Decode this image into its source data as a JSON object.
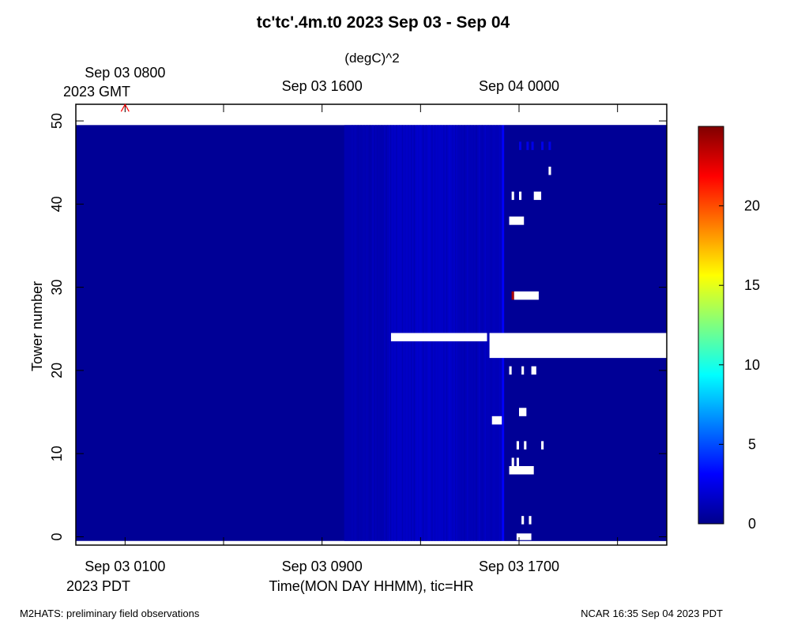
{
  "chart_data": {
    "type": "heatmap",
    "title": "tc'tc'.4m.t0 2023 Sep 03 - Sep 04",
    "colorbar_label": "(degC)^2",
    "xlabel": "Time(MON DAY HHMM), tic=HR",
    "ylabel": "Tower number",
    "bottom_axis": {
      "timezone_label": "2023 PDT",
      "labels": [
        {
          "t": 0,
          "label": "Sep 03 0100"
        },
        {
          "t": 8,
          "label": "Sep 03 0900"
        },
        {
          "t": 16,
          "label": "Sep 03 1700"
        }
      ],
      "major_ticks": [
        0,
        4,
        8,
        12,
        16,
        20
      ]
    },
    "top_axis": {
      "timezone_label": "2023 GMT",
      "labels": [
        {
          "t": 0,
          "label": "Sep 03 0800"
        },
        {
          "t": 8,
          "label": "Sep 03 1600"
        },
        {
          "t": 16,
          "label": "Sep 04 0000"
        }
      ]
    },
    "xlim_hours": [
      -2,
      22
    ],
    "ylim": [
      -1,
      52
    ],
    "yticks": [
      0,
      10,
      20,
      30,
      40,
      50
    ],
    "colorbar": {
      "range": [
        0,
        25
      ],
      "ticks": [
        0,
        5,
        10,
        15,
        20
      ],
      "colormap": [
        "#00008b",
        "#0000ff",
        "#007fff",
        "#00ffff",
        "#7fff7f",
        "#ffff00",
        "#ff7f00",
        "#ff0000",
        "#800000"
      ]
    },
    "field": {
      "towers": [
        0,
        49
      ],
      "background_value": 0.3,
      "bands": [
        {
          "t0": 8.9,
          "t1": 10.7,
          "value": 1.0
        },
        {
          "t0": 10.7,
          "t1": 13.5,
          "value": 1.6
        },
        {
          "t0": 13.5,
          "t1": 15.3,
          "value": 1.2
        },
        {
          "t0": 15.3,
          "t1": 15.4,
          "value": 3.0
        },
        {
          "t0": 15.4,
          "t1": 22,
          "value": 0.3
        }
      ],
      "high_values": [
        {
          "tower": 29,
          "t0": 15.7,
          "t1": 15.8,
          "value": 24
        }
      ],
      "missing": [
        {
          "t0": 10.8,
          "t1": 14.7,
          "y0": 23.5,
          "y1": 24.5
        },
        {
          "t0": 14.8,
          "t1": 22,
          "y0": 21.5,
          "y1": 24.5
        },
        {
          "t0": 15.8,
          "t1": 16.8,
          "y0": 28.5,
          "y1": 29.5
        },
        {
          "t0": 15.6,
          "t1": 16.2,
          "y0": 37.5,
          "y1": 38.5
        },
        {
          "t0": 15.7,
          "t1": 15.8,
          "y0": 40.5,
          "y1": 41.5
        },
        {
          "t0": 16.0,
          "t1": 16.1,
          "y0": 40.5,
          "y1": 41.5
        },
        {
          "t0": 16.6,
          "t1": 16.9,
          "y0": 40.5,
          "y1": 41.5
        },
        {
          "t0": 17.2,
          "t1": 17.3,
          "y0": 43.5,
          "y1": 44.5
        },
        {
          "t0": 15.6,
          "t1": 15.7,
          "y0": 19.5,
          "y1": 20.5
        },
        {
          "t0": 16.1,
          "t1": 16.2,
          "y0": 19.5,
          "y1": 20.5
        },
        {
          "t0": 16.5,
          "t1": 16.7,
          "y0": 19.5,
          "y1": 20.5
        },
        {
          "t0": 16.0,
          "t1": 16.3,
          "y0": 14.5,
          "y1": 15.5
        },
        {
          "t0": 14.9,
          "t1": 15.3,
          "y0": 13.5,
          "y1": 14.5
        },
        {
          "t0": 15.9,
          "t1": 16.0,
          "y0": 10.5,
          "y1": 11.5
        },
        {
          "t0": 16.2,
          "t1": 16.3,
          "y0": 10.5,
          "y1": 11.5
        },
        {
          "t0": 16.9,
          "t1": 17.0,
          "y0": 10.5,
          "y1": 11.5
        },
        {
          "t0": 15.7,
          "t1": 15.8,
          "y0": 8.5,
          "y1": 9.5
        },
        {
          "t0": 15.9,
          "t1": 16.0,
          "y0": 8.5,
          "y1": 9.5
        },
        {
          "t0": 15.6,
          "t1": 16.6,
          "y0": 7.5,
          "y1": 8.5
        },
        {
          "t0": 16.1,
          "t1": 16.2,
          "y0": 1.5,
          "y1": 2.5
        },
        {
          "t0": 16.4,
          "t1": 16.5,
          "y0": 1.5,
          "y1": 2.5
        },
        {
          "t0": 15.9,
          "t1": 16.5,
          "y0": -0.4,
          "y1": 0.4
        }
      ],
      "light_speckles": [
        {
          "tower": 47,
          "t": [
            16.0,
            16.3,
            16.5,
            16.9,
            17.2
          ]
        }
      ]
    },
    "marker": {
      "symbol": "^",
      "t": 0,
      "tower": 51.6,
      "color": "#ff0000"
    }
  },
  "footer": {
    "left": "M2HATS: preliminary field observations",
    "right": "NCAR 16:35 Sep 04 2023 PDT"
  }
}
